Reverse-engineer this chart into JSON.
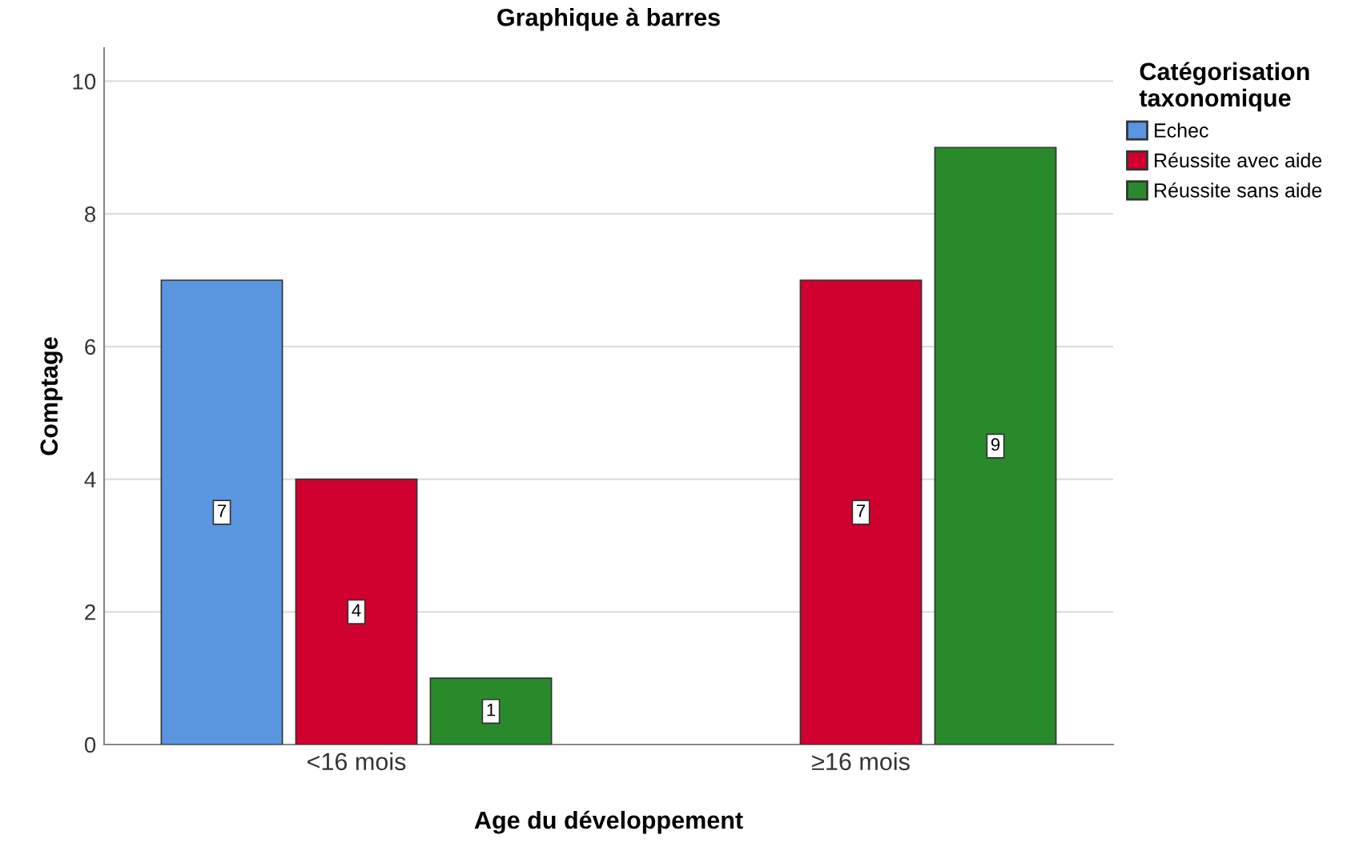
{
  "chart_data": {
    "type": "bar",
    "title": "Graphique à barres",
    "xlabel": "Age du développement",
    "ylabel": "Comptage",
    "legend_title": "Catégorisation\ntaxonomique",
    "categories": [
      "<16 mois",
      "≥16 mois"
    ],
    "series": [
      {
        "name": "Echec",
        "color": "#5a96e0",
        "values": [
          7,
          null
        ]
      },
      {
        "name": "Réussite avec aide",
        "color": "#d0002f",
        "values": [
          4,
          7
        ]
      },
      {
        "name": "Réussite sans aide",
        "color": "#298a2c",
        "values": [
          1,
          9
        ]
      }
    ],
    "ylim": [
      0,
      10.5
    ],
    "yticks": [
      0,
      2,
      4,
      6,
      8,
      10
    ],
    "grid": "y",
    "legend": "top right",
    "data_labels": true
  }
}
